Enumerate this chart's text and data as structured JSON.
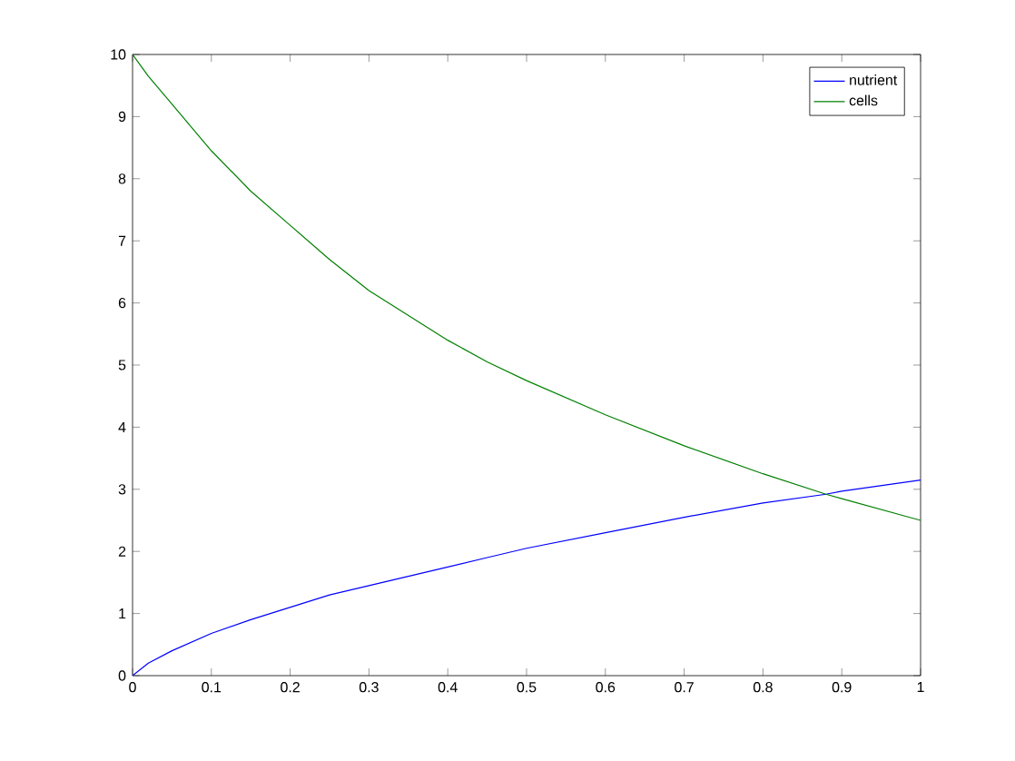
{
  "chart_data": {
    "type": "line",
    "xlim": [
      0,
      1
    ],
    "ylim": [
      0,
      10
    ],
    "xticks": [
      0,
      0.1,
      0.2,
      0.3,
      0.4,
      0.5,
      0.6,
      0.7,
      0.8,
      0.9,
      1
    ],
    "yticks": [
      0,
      1,
      2,
      3,
      4,
      5,
      6,
      7,
      8,
      9,
      10
    ],
    "x": [
      0,
      0.02,
      0.05,
      0.1,
      0.15,
      0.2,
      0.25,
      0.3,
      0.35,
      0.4,
      0.45,
      0.5,
      0.6,
      0.7,
      0.8,
      0.88,
      0.9,
      1.0
    ],
    "series": [
      {
        "name": "nutrient",
        "color": "#0000ff",
        "values": [
          0,
          0.2,
          0.4,
          0.68,
          0.9,
          1.1,
          1.3,
          1.45,
          1.6,
          1.75,
          1.9,
          2.05,
          2.3,
          2.55,
          2.78,
          2.92,
          2.97,
          3.15
        ]
      },
      {
        "name": "cells",
        "color": "#008000",
        "values": [
          10,
          9.65,
          9.2,
          8.45,
          7.8,
          7.25,
          6.7,
          6.2,
          5.8,
          5.4,
          5.05,
          4.75,
          4.2,
          3.7,
          3.25,
          2.92,
          2.85,
          2.5
        ]
      }
    ],
    "legend": "top right",
    "grid": false,
    "marker": "none",
    "line_style": "solid"
  }
}
